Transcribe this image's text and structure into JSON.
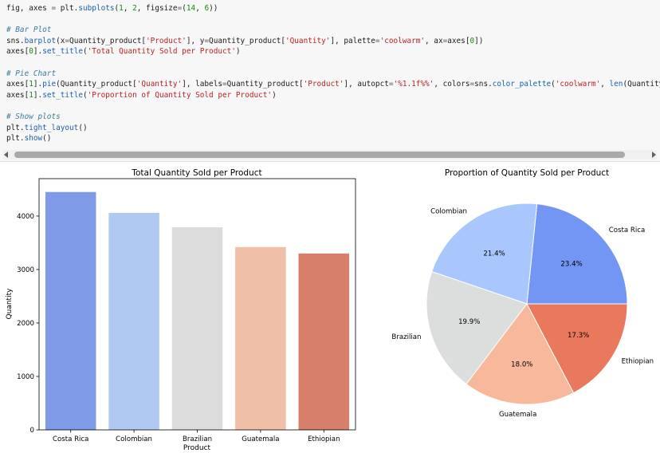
{
  "code_cell": {
    "lines": [
      [
        {
          "t": "fig, axes ",
          "c": "plain"
        },
        {
          "t": "=",
          "c": "op"
        },
        {
          "t": " plt.",
          "c": "plain"
        },
        {
          "t": "subplots",
          "c": "func"
        },
        {
          "t": "(",
          "c": "plain"
        },
        {
          "t": "1",
          "c": "number"
        },
        {
          "t": ", ",
          "c": "plain"
        },
        {
          "t": "2",
          "c": "number"
        },
        {
          "t": ", figsize",
          "c": "plain"
        },
        {
          "t": "=",
          "c": "op"
        },
        {
          "t": "(",
          "c": "plain"
        },
        {
          "t": "14",
          "c": "number"
        },
        {
          "t": ", ",
          "c": "plain"
        },
        {
          "t": "6",
          "c": "number"
        },
        {
          "t": "))",
          "c": "plain"
        }
      ],
      [],
      [
        {
          "t": "# Bar Plot",
          "c": "comment"
        }
      ],
      [
        {
          "t": "sns.",
          "c": "plain"
        },
        {
          "t": "barplot",
          "c": "func"
        },
        {
          "t": "(x",
          "c": "plain"
        },
        {
          "t": "=",
          "c": "op"
        },
        {
          "t": "Quantity_product[",
          "c": "plain"
        },
        {
          "t": "'Product'",
          "c": "string"
        },
        {
          "t": "], y",
          "c": "plain"
        },
        {
          "t": "=",
          "c": "op"
        },
        {
          "t": "Quantity_product[",
          "c": "plain"
        },
        {
          "t": "'Quantity'",
          "c": "string"
        },
        {
          "t": "], palette",
          "c": "plain"
        },
        {
          "t": "=",
          "c": "op"
        },
        {
          "t": "'coolwarm'",
          "c": "string"
        },
        {
          "t": ", ax",
          "c": "plain"
        },
        {
          "t": "=",
          "c": "op"
        },
        {
          "t": "axes[",
          "c": "plain"
        },
        {
          "t": "0",
          "c": "number"
        },
        {
          "t": "])",
          "c": "plain"
        }
      ],
      [
        {
          "t": "axes[",
          "c": "plain"
        },
        {
          "t": "0",
          "c": "number"
        },
        {
          "t": "].",
          "c": "plain"
        },
        {
          "t": "set_title",
          "c": "func"
        },
        {
          "t": "(",
          "c": "plain"
        },
        {
          "t": "'Total Quantity Sold per Product'",
          "c": "string"
        },
        {
          "t": ")",
          "c": "plain"
        }
      ],
      [],
      [
        {
          "t": "# Pie Chart",
          "c": "comment"
        }
      ],
      [
        {
          "t": "axes[",
          "c": "plain"
        },
        {
          "t": "1",
          "c": "number"
        },
        {
          "t": "].",
          "c": "plain"
        },
        {
          "t": "pie",
          "c": "func"
        },
        {
          "t": "(Quantity_product[",
          "c": "plain"
        },
        {
          "t": "'Quantity'",
          "c": "string"
        },
        {
          "t": "], labels",
          "c": "plain"
        },
        {
          "t": "=",
          "c": "op"
        },
        {
          "t": "Quantity_product[",
          "c": "plain"
        },
        {
          "t": "'Product'",
          "c": "string"
        },
        {
          "t": "], autopct",
          "c": "plain"
        },
        {
          "t": "=",
          "c": "op"
        },
        {
          "t": "'%1.1f%%'",
          "c": "string"
        },
        {
          "t": ", colors",
          "c": "plain"
        },
        {
          "t": "=",
          "c": "op"
        },
        {
          "t": "sns.",
          "c": "plain"
        },
        {
          "t": "color_palette",
          "c": "func"
        },
        {
          "t": "(",
          "c": "plain"
        },
        {
          "t": "'coolwarm'",
          "c": "string"
        },
        {
          "t": ", ",
          "c": "plain"
        },
        {
          "t": "len",
          "c": "func"
        },
        {
          "t": "(Quantity_produc",
          "c": "plain"
        }
      ],
      [
        {
          "t": "axes[",
          "c": "plain"
        },
        {
          "t": "1",
          "c": "number"
        },
        {
          "t": "].",
          "c": "plain"
        },
        {
          "t": "set_title",
          "c": "func"
        },
        {
          "t": "(",
          "c": "plain"
        },
        {
          "t": "'Proportion of Quantity Sold per Product'",
          "c": "string"
        },
        {
          "t": ")",
          "c": "plain"
        }
      ],
      [],
      [
        {
          "t": "# Show plots",
          "c": "comment"
        }
      ],
      [
        {
          "t": "plt.",
          "c": "plain"
        },
        {
          "t": "tight_layout",
          "c": "func"
        },
        {
          "t": "()",
          "c": "plain"
        }
      ],
      [
        {
          "t": "plt.",
          "c": "plain"
        },
        {
          "t": "show",
          "c": "func"
        },
        {
          "t": "()",
          "c": "plain"
        }
      ]
    ]
  },
  "chart_data": [
    {
      "type": "bar",
      "title": "Total Quantity Sold per Product",
      "xlabel": "Product",
      "ylabel": "Quantity",
      "categories": [
        "Costa Rica",
        "Colombian",
        "Brazilian",
        "Guatemala",
        "Ethiopian"
      ],
      "values": [
        4450,
        4060,
        3790,
        3420,
        3300
      ],
      "ylim": [
        0,
        4700
      ],
      "yticks": [
        0,
        1000,
        2000,
        3000,
        4000
      ],
      "colors": [
        "#7f9ae6",
        "#b0c9f2",
        "#dcdcdc",
        "#efc0a7",
        "#d87f6c"
      ],
      "grid": false
    },
    {
      "type": "pie",
      "title": "Proportion of Quantity Sold per Product",
      "labels": [
        "Costa Rica",
        "Colombian",
        "Brazilian",
        "Guatemala",
        "Ethiopian"
      ],
      "values": [
        23.4,
        21.4,
        19.9,
        18.0,
        17.3
      ],
      "pct_labels": [
        "23.4%",
        "21.4%",
        "19.9%",
        "18.0%",
        "17.3%"
      ],
      "colors": [
        "#7396f4",
        "#aac7fd",
        "#dcdddd",
        "#f7b89c",
        "#e9785d"
      ]
    }
  ]
}
